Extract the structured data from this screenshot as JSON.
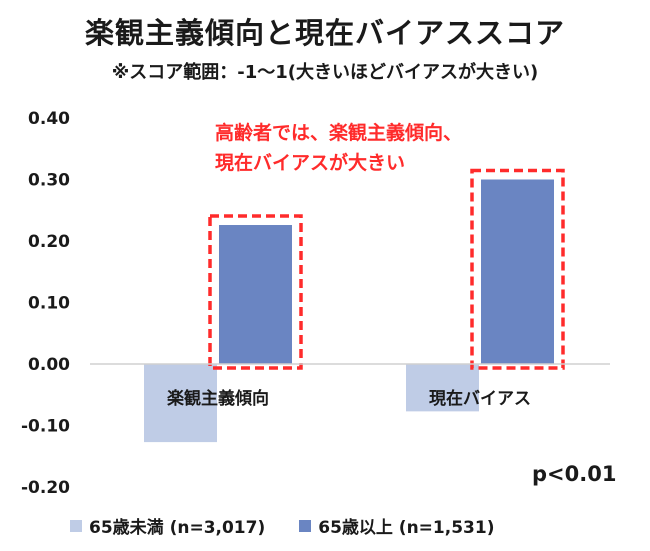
{
  "header": {
    "title": "楽観主義傾向と現在バイアススコア",
    "subtitle": "※スコア範囲：-1～1(大きいほどバイアスが大きい)"
  },
  "annotation": {
    "line1": "高齢者では、楽観主義傾向、",
    "line2": "現在バイアスが大きい",
    "color": "#ff2b2b"
  },
  "p_value": "p<0.01",
  "chart_data": {
    "type": "bar",
    "title": "楽観主義傾向と現在バイアススコア",
    "subtitle": "※スコア範囲：-1～1(大きいほどバイアスが大きい)",
    "categories": [
      "楽観主義傾向",
      "現在バイアス"
    ],
    "series": [
      {
        "name": "65歳未満 (n=3,017)",
        "values": [
          -0.127,
          -0.077
        ],
        "color": "#bfcce6"
      },
      {
        "name": "65歳以上 (n=1,531)",
        "values": [
          0.226,
          0.3
        ],
        "color": "#6a85c2"
      }
    ],
    "ylim": [
      -0.2,
      0.4
    ],
    "yticks": [
      "0.40",
      "0.30",
      "0.20",
      "0.10",
      "0.00",
      "-0.10",
      "-0.20"
    ],
    "ytick_values": [
      0.4,
      0.3,
      0.2,
      0.1,
      0.0,
      -0.1,
      -0.2
    ],
    "grid": false,
    "legend_position": "bottom",
    "highlighted_series": "65歳以上 (n=1,531)"
  }
}
